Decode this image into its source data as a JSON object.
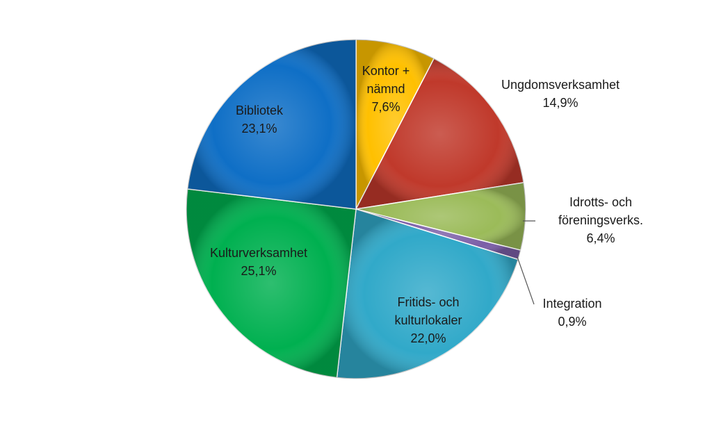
{
  "chart_data": {
    "type": "pie",
    "title": "",
    "slices": [
      {
        "label_lines": [
          "Kontor +",
          "nämnd"
        ],
        "percent_label": "7,6%",
        "value": 7.6,
        "color": "#FFC000"
      },
      {
        "label_lines": [
          "Ungdomsverksamhet"
        ],
        "percent_label": "14,9%",
        "value": 14.9,
        "color": "#C0392B"
      },
      {
        "label_lines": [
          "Idrotts- och",
          "föreningsverks."
        ],
        "percent_label": "6,4%",
        "value": 6.4,
        "color": "#9BBB59"
      },
      {
        "label_lines": [
          "Integration"
        ],
        "percent_label": "0,9%",
        "value": 0.9,
        "color": "#7B5EA7"
      },
      {
        "label_lines": [
          "Fritids- och",
          "kulturlokaler"
        ],
        "percent_label": "22,0%",
        "value": 22.0,
        "color": "#31A9C9"
      },
      {
        "label_lines": [
          "Kulturverksamhet"
        ],
        "percent_label": "25,1%",
        "value": 25.1,
        "color": "#00B050"
      },
      {
        "label_lines": [
          "Bibliotek"
        ],
        "percent_label": "23,1%",
        "value": 23.1,
        "color": "#0F6FC6"
      }
    ],
    "start_angle": "12 o'clock",
    "direction": "clockwise",
    "legend": "none",
    "data_labels": "category name and percentage"
  }
}
